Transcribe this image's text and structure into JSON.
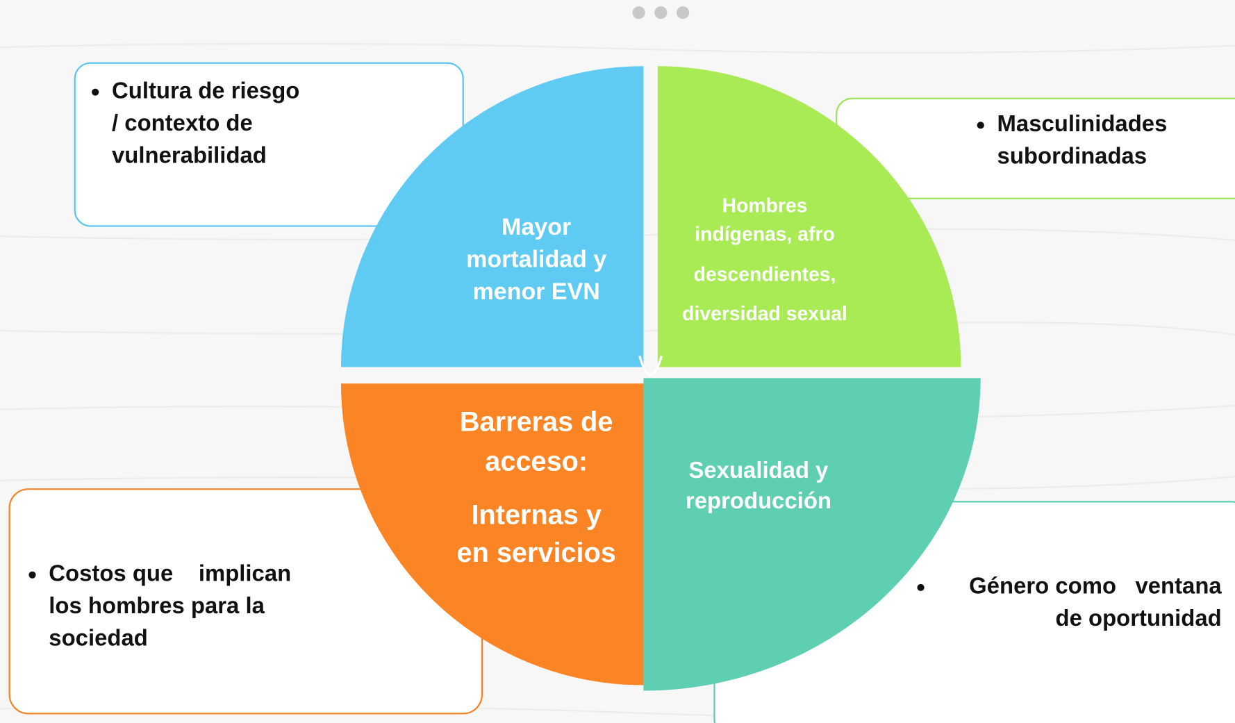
{
  "segments": [
    {
      "lines": [
        "Mayor",
        "mortalidad y",
        "menor EVN"
      ]
    },
    {
      "lines": [
        "Hombres",
        "indígenas, afro",
        "descendientes,",
        "diversidad sexual"
      ]
    },
    {
      "lines": [
        "Barreras de",
        "acceso:",
        "Internas y",
        "en servicios"
      ]
    },
    {
      "lines": [
        "Sexualidad y",
        "reproducción"
      ]
    }
  ],
  "boxes": [
    {
      "lines": [
        "Cultura de riesgo",
        "/ contexto de",
        "vulnerabilidad"
      ]
    },
    {
      "lines": [
        "Masculinidades",
        "subordinadas"
      ]
    },
    {
      "lines": [
        "Costos que    implican",
        "los hombres para la",
        "sociedad"
      ]
    },
    {
      "lines": [
        "Género como   ventana",
        "de oportunidad"
      ]
    }
  ]
}
